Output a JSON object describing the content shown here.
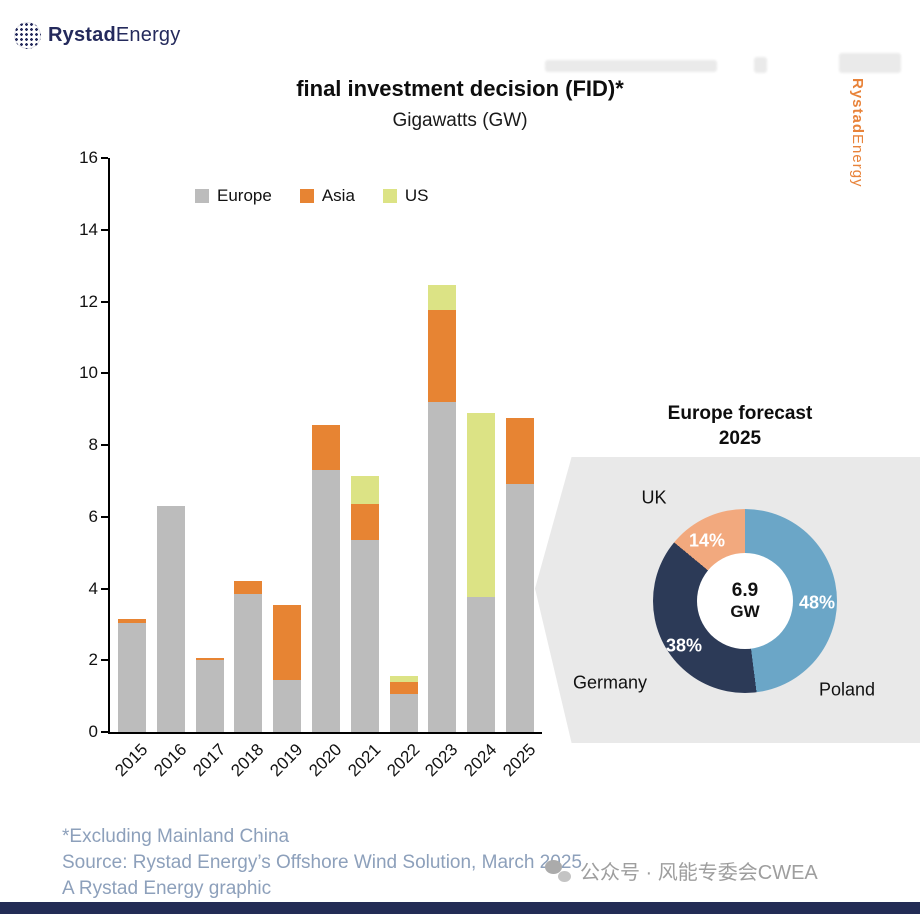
{
  "brand": {
    "logo_bold": "Rystad",
    "logo_regular": "Energy",
    "vertical_bold": "Rystad",
    "vertical_regular": "Energy"
  },
  "header": {
    "title": "final investment decision (FID)*",
    "subtitle": "Gigawatts (GW)"
  },
  "chart_data": {
    "type": "bar",
    "stacked": true,
    "title": "final investment decision (FID)*",
    "subtitle": "Gigawatts (GW)",
    "categories": [
      "2015",
      "2016",
      "2017",
      "2018",
      "2019",
      "2020",
      "2021",
      "2022",
      "2023",
      "2024",
      "2025"
    ],
    "series": [
      {
        "name": "Europe",
        "color": "#bcbcbc",
        "values": [
          3.05,
          6.3,
          2.0,
          3.85,
          1.45,
          7.3,
          5.35,
          1.05,
          9.2,
          3.75,
          6.9
        ]
      },
      {
        "name": "Asia",
        "color": "#e78433",
        "values": [
          0.1,
          0,
          0.05,
          0.35,
          2.1,
          1.25,
          1.0,
          0.35,
          2.55,
          0,
          1.85
        ]
      },
      {
        "name": "US",
        "color": "#dce385",
        "values": [
          0,
          0,
          0,
          0,
          0,
          0,
          0.8,
          0.15,
          0.7,
          5.15,
          0
        ]
      }
    ],
    "ylim": [
      0,
      16
    ],
    "ytick_step": 2,
    "grid": false,
    "legend_position": "top"
  },
  "donut": {
    "title_line1": "Europe forecast",
    "title_line2": "2025",
    "center_value": "6.9",
    "center_unit": "GW",
    "slices": [
      {
        "label": "Poland",
        "pct": 48,
        "pct_label": "48%",
        "color": "#6ba6c7"
      },
      {
        "label": "Germany",
        "pct": 38,
        "pct_label": "38%",
        "color": "#2c3a57"
      },
      {
        "label": "UK",
        "pct": 14,
        "pct_label": "14%",
        "color": "#f2a97e"
      }
    ]
  },
  "footnotes": {
    "line1": "*Excluding Mainland China",
    "line2": "Source: Rystad Energy’s Offshore Wind Solution, March 2025",
    "line3": "A Rystad Energy graphic"
  },
  "watermark": {
    "text": "公众号 · 风能专委会CWEA"
  }
}
